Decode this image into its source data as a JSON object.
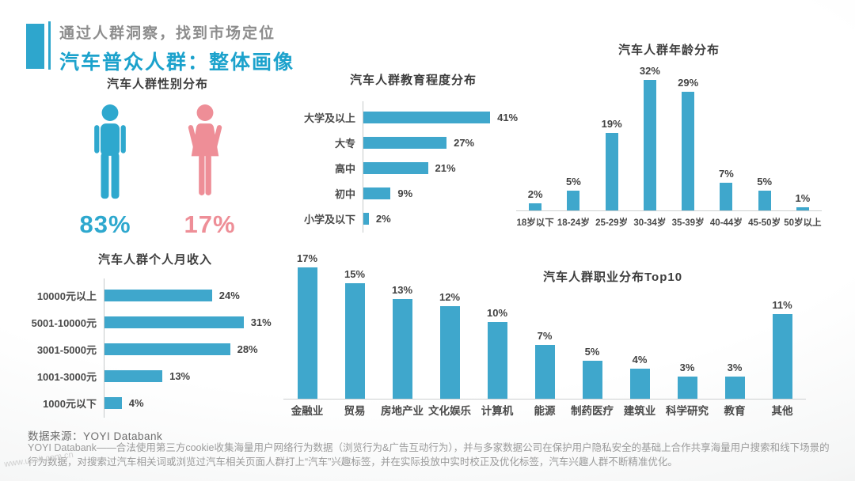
{
  "header": {
    "subtitle": "通过人群洞察，找到市场定位",
    "title": "汽车普众人群：整体画像"
  },
  "colors": {
    "accent_blue": "#2EA6CD",
    "bar_blue": "#3FA7CC",
    "male_blue": "#2EA8CE",
    "female_pink": "#EE8E97"
  },
  "footer": {
    "source": "数据来源：YOYI Databank",
    "description": "YOYI Databank——合法使用第三方cookie收集海量用户网络行为数据（浏览行为&广告互动行为），并与多家数据公司在保护用户隐私安全的基础上合作共享海量用户搜索和线下场景的行为数据，对搜索过汽车相关词或浏览过汽车相关页面人群打上“汽车”兴趣标签，并在实际投放中实时校正及优化标签，汽车兴趣人群不断精准优化。",
    "watermark": "www.useit.com.cn"
  },
  "chart_data": [
    {
      "id": "gender",
      "type": "pie",
      "title": "汽车人群性别分布",
      "categories": [
        "male",
        "female"
      ],
      "values": [
        83,
        17
      ],
      "display_labels": [
        "83%",
        "17%"
      ],
      "unit": "%",
      "legend_position": "none"
    },
    {
      "id": "education",
      "type": "bar",
      "orientation": "horizontal",
      "title": "汽车人群教育程度分布",
      "categories": [
        "大学及以上",
        "大专",
        "高中",
        "初中",
        "小学及以下"
      ],
      "values": [
        41,
        27,
        21,
        9,
        2
      ],
      "unit": "%",
      "xlim": [
        0,
        45
      ],
      "grid": false
    },
    {
      "id": "age",
      "type": "bar",
      "orientation": "vertical",
      "title": "汽车人群年龄分布",
      "categories": [
        "18岁以下",
        "18-24岁",
        "25-29岁",
        "30-34岁",
        "35-39岁",
        "40-44岁",
        "45-50岁",
        "50岁以上"
      ],
      "values": [
        2,
        5,
        19,
        32,
        29,
        7,
        5,
        1
      ],
      "unit": "%",
      "ylim": [
        0,
        35
      ],
      "grid": false
    },
    {
      "id": "income",
      "type": "bar",
      "orientation": "horizontal",
      "title": "汽车人群个人月收入",
      "categories": [
        "10000元以上",
        "5001-10000元",
        "3001-5000元",
        "1001-3000元",
        "1000元以下"
      ],
      "values": [
        24,
        31,
        28,
        13,
        4
      ],
      "unit": "%",
      "xlim": [
        0,
        35
      ],
      "grid": false
    },
    {
      "id": "occupation",
      "type": "bar",
      "orientation": "vertical",
      "title": "汽车人群职业分布Top10",
      "categories": [
        "金融业",
        "贸易",
        "房地产业",
        "文化娱乐",
        "计算机",
        "能源",
        "制药医疗",
        "建筑业",
        "科学研究",
        "教育",
        "其他"
      ],
      "values": [
        17,
        15,
        13,
        12,
        10,
        7,
        5,
        4,
        3,
        3,
        11
      ],
      "unit": "%",
      "ylim": [
        0,
        18
      ],
      "grid": false
    }
  ]
}
